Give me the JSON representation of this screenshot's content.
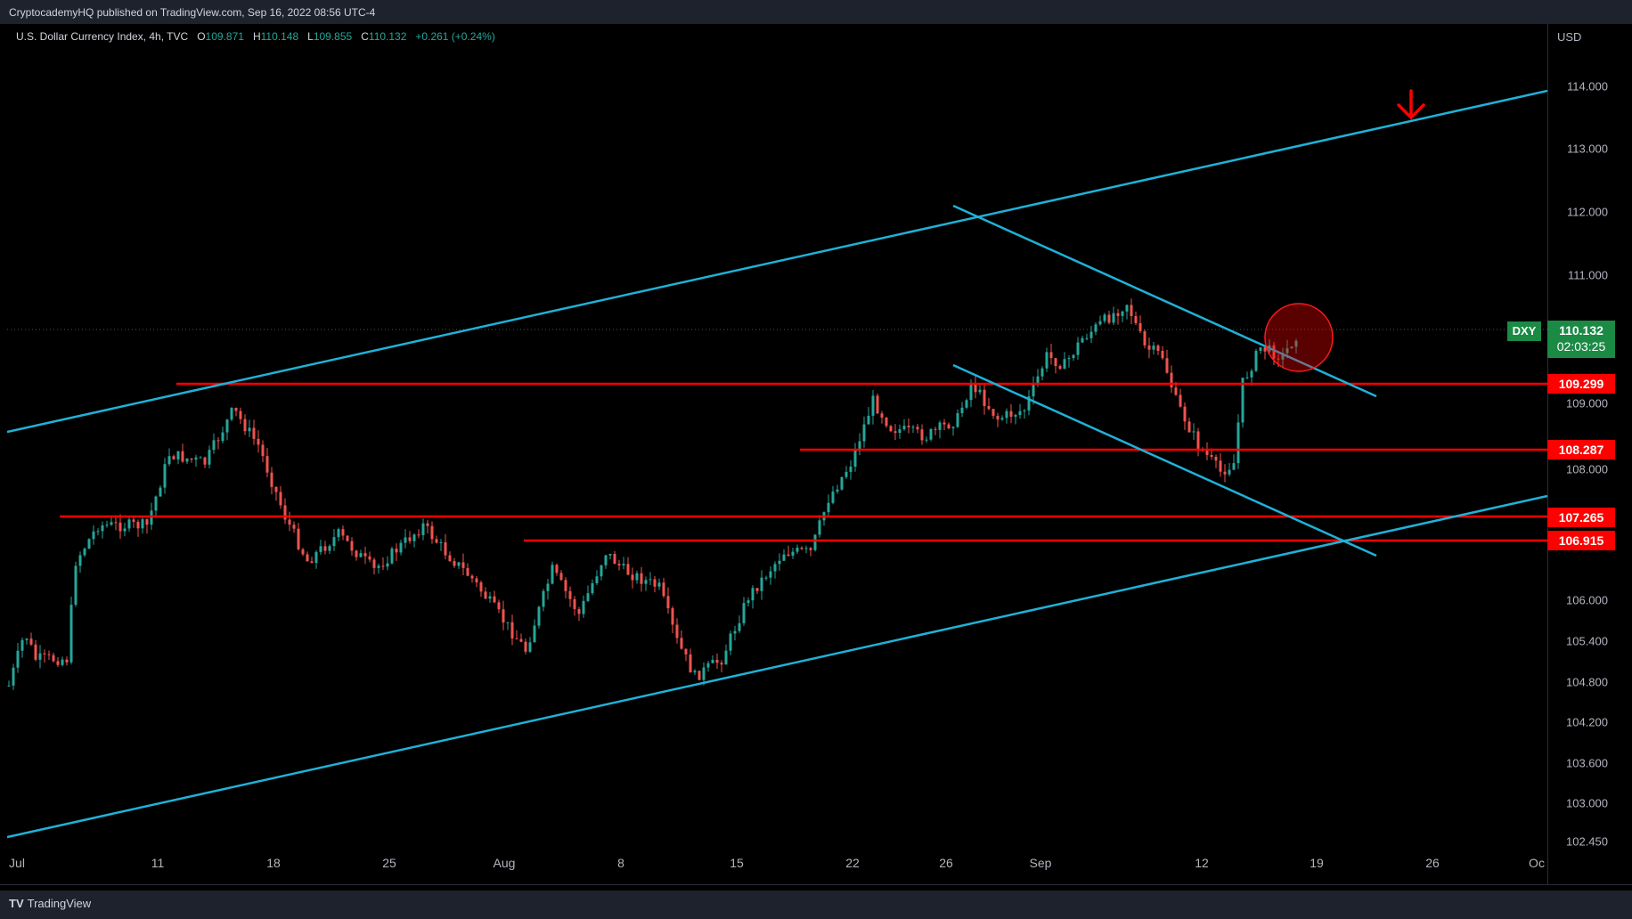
{
  "header": {
    "published_text": "CryptocademyHQ published on TradingView.com, Sep 16, 2022 08:56 UTC-4"
  },
  "legend": {
    "symbol": "U.S. Dollar Currency Index, 4h, TVC",
    "open_label": "O",
    "open": "109.871",
    "high_label": "H",
    "high": "110.148",
    "low_label": "L",
    "low": "109.855",
    "close_label": "C",
    "close": "110.132",
    "change": "+0.261 (+0.24%)"
  },
  "price_scale": {
    "unit": "USD",
    "ticks": [
      "114.000",
      "113.000",
      "112.000",
      "111.000",
      "109.000",
      "108.000",
      "106.000",
      "105.400",
      "104.800",
      "104.200",
      "103.600",
      "103.000",
      "102.450"
    ]
  },
  "levels": {
    "l1": "109.299",
    "l2": "108.287",
    "l3": "107.265",
    "l4": "106.915"
  },
  "current": {
    "symbol": "DXY",
    "price": "110.132",
    "countdown": "02:03:25"
  },
  "time_axis": {
    "labels": [
      "Jul",
      "11",
      "18",
      "25",
      "Aug",
      "8",
      "15",
      "22",
      "26",
      "Sep",
      "12",
      "19",
      "26",
      "Oc"
    ]
  },
  "footer": {
    "brand": "TradingView"
  },
  "colors": {
    "bull": "#26a69a",
    "bear": "#ef5350",
    "trend": "#1fb2d8",
    "level": "#ff0000"
  }
}
